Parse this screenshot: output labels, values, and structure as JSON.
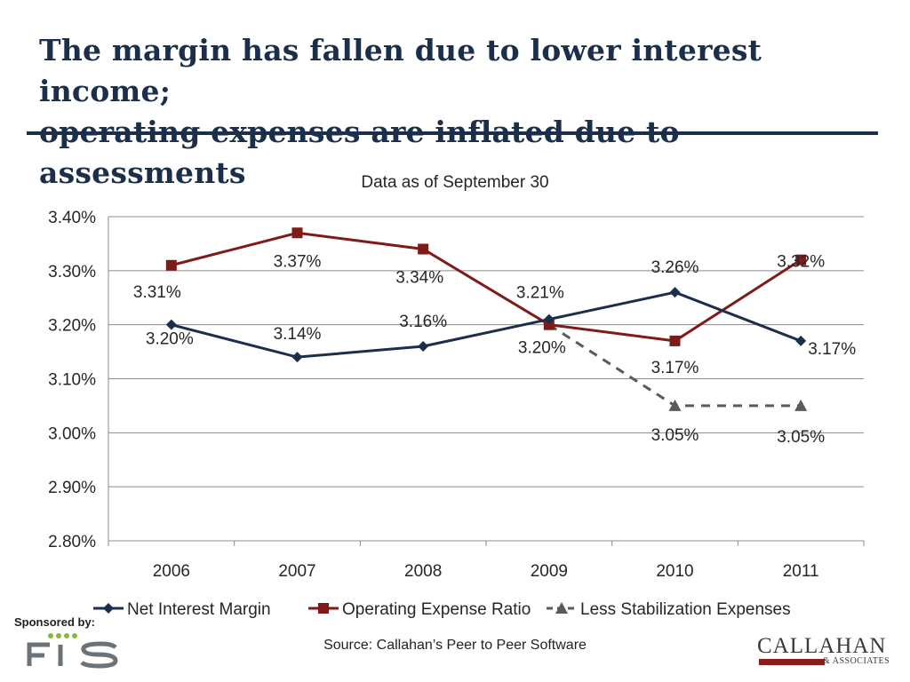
{
  "slide": {
    "title_line1": "The margin has fallen due to lower interest income;",
    "title_line2": "operating expenses are inflated due to assessments",
    "sponsor_label": "Sponsored by:",
    "sponsor_logo_text": "FIS",
    "source": "Source: Callahan’s Peer to Peer Software",
    "brand_name": "CALLAHAN",
    "brand_sub": "& ASSOCIATES"
  },
  "colors": {
    "title": "#1b2f4b",
    "net_interest_margin": "#1b2f4b",
    "operating_expense_ratio": "#7f1a1a",
    "less_stabilization": "#5a5a5a",
    "brand_accent": "#8a1c1c",
    "fis_green": "#8ab83c"
  },
  "chart_data": {
    "type": "line",
    "title": "Data as of September 30",
    "xlabel": "",
    "ylabel": "",
    "categories": [
      "2006",
      "2007",
      "2008",
      "2009",
      "2010",
      "2011"
    ],
    "ylim": [
      2.8,
      3.4
    ],
    "yticks": [
      2.8,
      2.9,
      3.0,
      3.1,
      3.2,
      3.3,
      3.4
    ],
    "ytick_labels": [
      "2.80%",
      "2.90%",
      "3.00%",
      "3.10%",
      "3.20%",
      "3.30%",
      "3.40%"
    ],
    "grid": true,
    "legend_position": "bottom",
    "series": [
      {
        "name": "Net Interest Margin",
        "marker": "diamond",
        "line": "solid",
        "values": [
          3.2,
          3.14,
          3.16,
          3.21,
          3.26,
          3.17
        ],
        "labels": [
          "3.20%",
          "3.14%",
          "3.16%",
          "3.21%",
          "3.26%",
          "3.17%"
        ]
      },
      {
        "name": "Operating Expense Ratio",
        "marker": "square",
        "line": "solid",
        "values": [
          3.31,
          3.37,
          3.34,
          3.2,
          3.17,
          3.32
        ],
        "labels": [
          "3.31%",
          "3.37%",
          "3.34%",
          "3.20%",
          "3.17%",
          "3.32%"
        ]
      },
      {
        "name": "Less Stabilization Expenses",
        "marker": "triangle",
        "line": "dashed",
        "values": [
          null,
          null,
          null,
          3.2,
          3.05,
          3.05
        ],
        "labels": [
          null,
          null,
          null,
          null,
          "3.05%",
          "3.05%"
        ]
      }
    ]
  }
}
